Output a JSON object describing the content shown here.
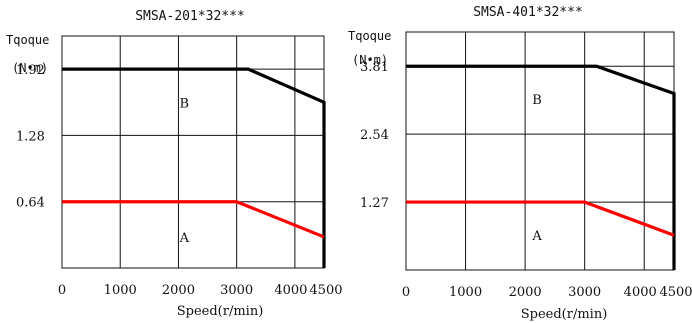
{
  "chart_data": [
    {
      "type": "line",
      "title": "SMSA-201*32***",
      "ylabel_line1": "Tqoque",
      "ylabel_line2": "(N•m)",
      "xlabel": "Speed(r/min)",
      "xlim": [
        0,
        4500
      ],
      "ylim": [
        0,
        2.24
      ],
      "x_ticks": [
        0,
        1000,
        2000,
        3000,
        4000,
        4500
      ],
      "x_tick_labels": [
        "0",
        "1000",
        "2000",
        "3000",
        "4000",
        "4500"
      ],
      "y_ticks": [
        0.64,
        1.28,
        1.92
      ],
      "y_tick_labels": [
        "0.64",
        "1.28",
        "1.92"
      ],
      "grid": true,
      "region_labels": [
        {
          "text": "B",
          "x": 2100,
          "y": 1.6
        },
        {
          "text": "A",
          "x": 2100,
          "y": 0.3
        }
      ],
      "series": [
        {
          "color": "#000000",
          "x": [
            0,
            3200,
            4500,
            4500
          ],
          "y": [
            1.92,
            1.92,
            1.6,
            0
          ]
        },
        {
          "color": "#ff0000",
          "x": [
            0,
            3000,
            4500
          ],
          "y": [
            0.64,
            0.64,
            0.3
          ]
        }
      ]
    },
    {
      "type": "line",
      "title": "SMSA-401*32***",
      "ylabel_line1": "Tqoque",
      "ylabel_line2": "(N•m)",
      "xlabel": "Speed(r/min)",
      "xlim": [
        0,
        4500
      ],
      "ylim": [
        0,
        4.45
      ],
      "x_ticks": [
        0,
        1000,
        2000,
        3000,
        4000,
        4500
      ],
      "x_tick_labels": [
        "0",
        "1000",
        "2000",
        "3000",
        "4000",
        "4500"
      ],
      "y_ticks": [
        1.27,
        2.54,
        3.81
      ],
      "y_tick_labels": [
        "1.27",
        "2.54",
        "3.81"
      ],
      "grid": true,
      "region_labels": [
        {
          "text": "B",
          "x": 2200,
          "y": 3.2
        },
        {
          "text": "A",
          "x": 2200,
          "y": 0.65
        }
      ],
      "series": [
        {
          "color": "#000000",
          "x": [
            0,
            3200,
            4500,
            4500
          ],
          "y": [
            3.81,
            3.81,
            3.3,
            0
          ]
        },
        {
          "color": "#ff0000",
          "x": [
            0,
            3000,
            4500
          ],
          "y": [
            1.27,
            1.27,
            0.65
          ]
        }
      ]
    }
  ]
}
